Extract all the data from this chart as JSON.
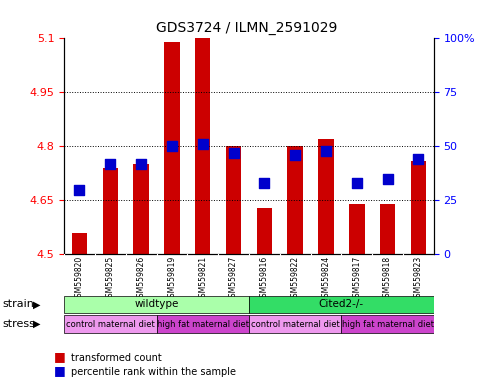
{
  "title": "GDS3724 / ILMN_2591029",
  "samples": [
    "GSM559820",
    "GSM559825",
    "GSM559826",
    "GSM559819",
    "GSM559821",
    "GSM559827",
    "GSM559816",
    "GSM559822",
    "GSM559824",
    "GSM559817",
    "GSM559818",
    "GSM559823"
  ],
  "red_values": [
    4.56,
    4.74,
    4.75,
    5.09,
    5.1,
    4.8,
    4.63,
    4.8,
    4.82,
    4.64,
    4.64,
    4.76
  ],
  "blue_pct": [
    30,
    42,
    42,
    50,
    51,
    47,
    33,
    46,
    48,
    33,
    35,
    44
  ],
  "ymin": 4.5,
  "ymax": 5.1,
  "y2min": 0,
  "y2max": 100,
  "yticks": [
    4.5,
    4.65,
    4.8,
    4.95,
    5.1
  ],
  "y2ticks": [
    0,
    25,
    50,
    75,
    100
  ],
  "ytick_labels": [
    "4.5",
    "4.65",
    "4.8",
    "4.95",
    "5.1"
  ],
  "y2tick_labels": [
    "0",
    "25",
    "50",
    "75",
    "100%"
  ],
  "bar_color": "#cc0000",
  "dot_color": "#0000cc",
  "plot_bg": "#ffffff",
  "tick_area_bg": "#c8c8c8",
  "strain_row": [
    {
      "label": "wildtype",
      "span": [
        0,
        6
      ],
      "color": "#aaffaa"
    },
    {
      "label": "Cited2-/-",
      "span": [
        6,
        12
      ],
      "color": "#33dd66"
    }
  ],
  "stress_row": [
    {
      "label": "control maternal diet",
      "span": [
        0,
        3
      ],
      "color": "#ee99ee"
    },
    {
      "label": "high fat maternal diet",
      "span": [
        3,
        6
      ],
      "color": "#cc44cc"
    },
    {
      "label": "control maternal diet",
      "span": [
        6,
        9
      ],
      "color": "#ee99ee"
    },
    {
      "label": "high fat maternal diet",
      "span": [
        9,
        12
      ],
      "color": "#cc44cc"
    }
  ],
  "legend_red": "transformed count",
  "legend_blue": "percentile rank within the sample",
  "strain_label": "strain",
  "stress_label": "stress",
  "bar_width": 0.5,
  "dot_size": 55,
  "gridlines": [
    4.65,
    4.8,
    4.95
  ]
}
